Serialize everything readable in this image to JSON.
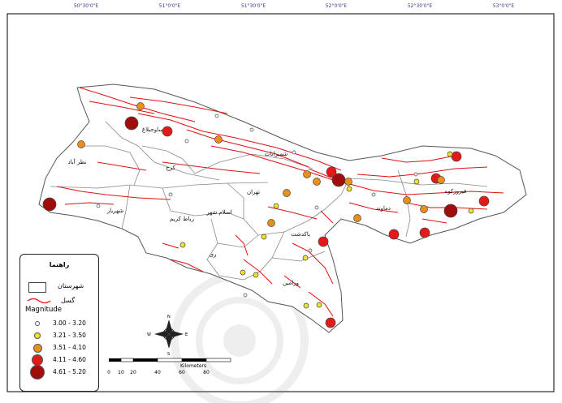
{
  "graticule": {
    "top": [
      "50°30'0\"E",
      "51°0'0\"E",
      "51°30'0\"E",
      "52°0'0\"E",
      "52°30'0\"E",
      "53°0'0\"E"
    ],
    "bottom": [
      "",
      "",
      "",
      "",
      "",
      ""
    ]
  },
  "legend": {
    "title": "راهنما",
    "county_label": "شهرستان",
    "fault_label": "گسل",
    "magnitude_title": "Magnitude",
    "classes": [
      {
        "label": "3.00 - 3.20",
        "color": "#ffffff"
      },
      {
        "label": "3.21 - 3.50",
        "color": "#f0e32c"
      },
      {
        "label": "3.51 - 4.10",
        "color": "#e8901b"
      },
      {
        "label": "4.11 - 4.60",
        "color": "#e21a1a"
      },
      {
        "label": "4.61 - 5.20",
        "color": "#a00d0d"
      }
    ]
  },
  "scale_bar": {
    "unit": "Kilometers",
    "ticks": [
      "0",
      "10",
      "20",
      "40",
      "60",
      "80"
    ]
  },
  "compass": {
    "n": "N",
    "s": "S",
    "e": "E",
    "w": "W"
  },
  "places": [
    {
      "name": "نظر آباد"
    },
    {
      "name": "ساوجبلاغ"
    },
    {
      "name": "کرج"
    },
    {
      "name": "شمیرانات"
    },
    {
      "name": "تهران"
    },
    {
      "name": "شهریار"
    },
    {
      "name": "اسلام شهر"
    },
    {
      "name": "رباط کریم"
    },
    {
      "name": "ری"
    },
    {
      "name": "پاکدشت"
    },
    {
      "name": "ورامین"
    },
    {
      "name": "دماوند"
    },
    {
      "name": "فیروزکوه"
    }
  ],
  "colors": {
    "fault": "#e01010",
    "border": "#555555",
    "frame": "#000000"
  }
}
